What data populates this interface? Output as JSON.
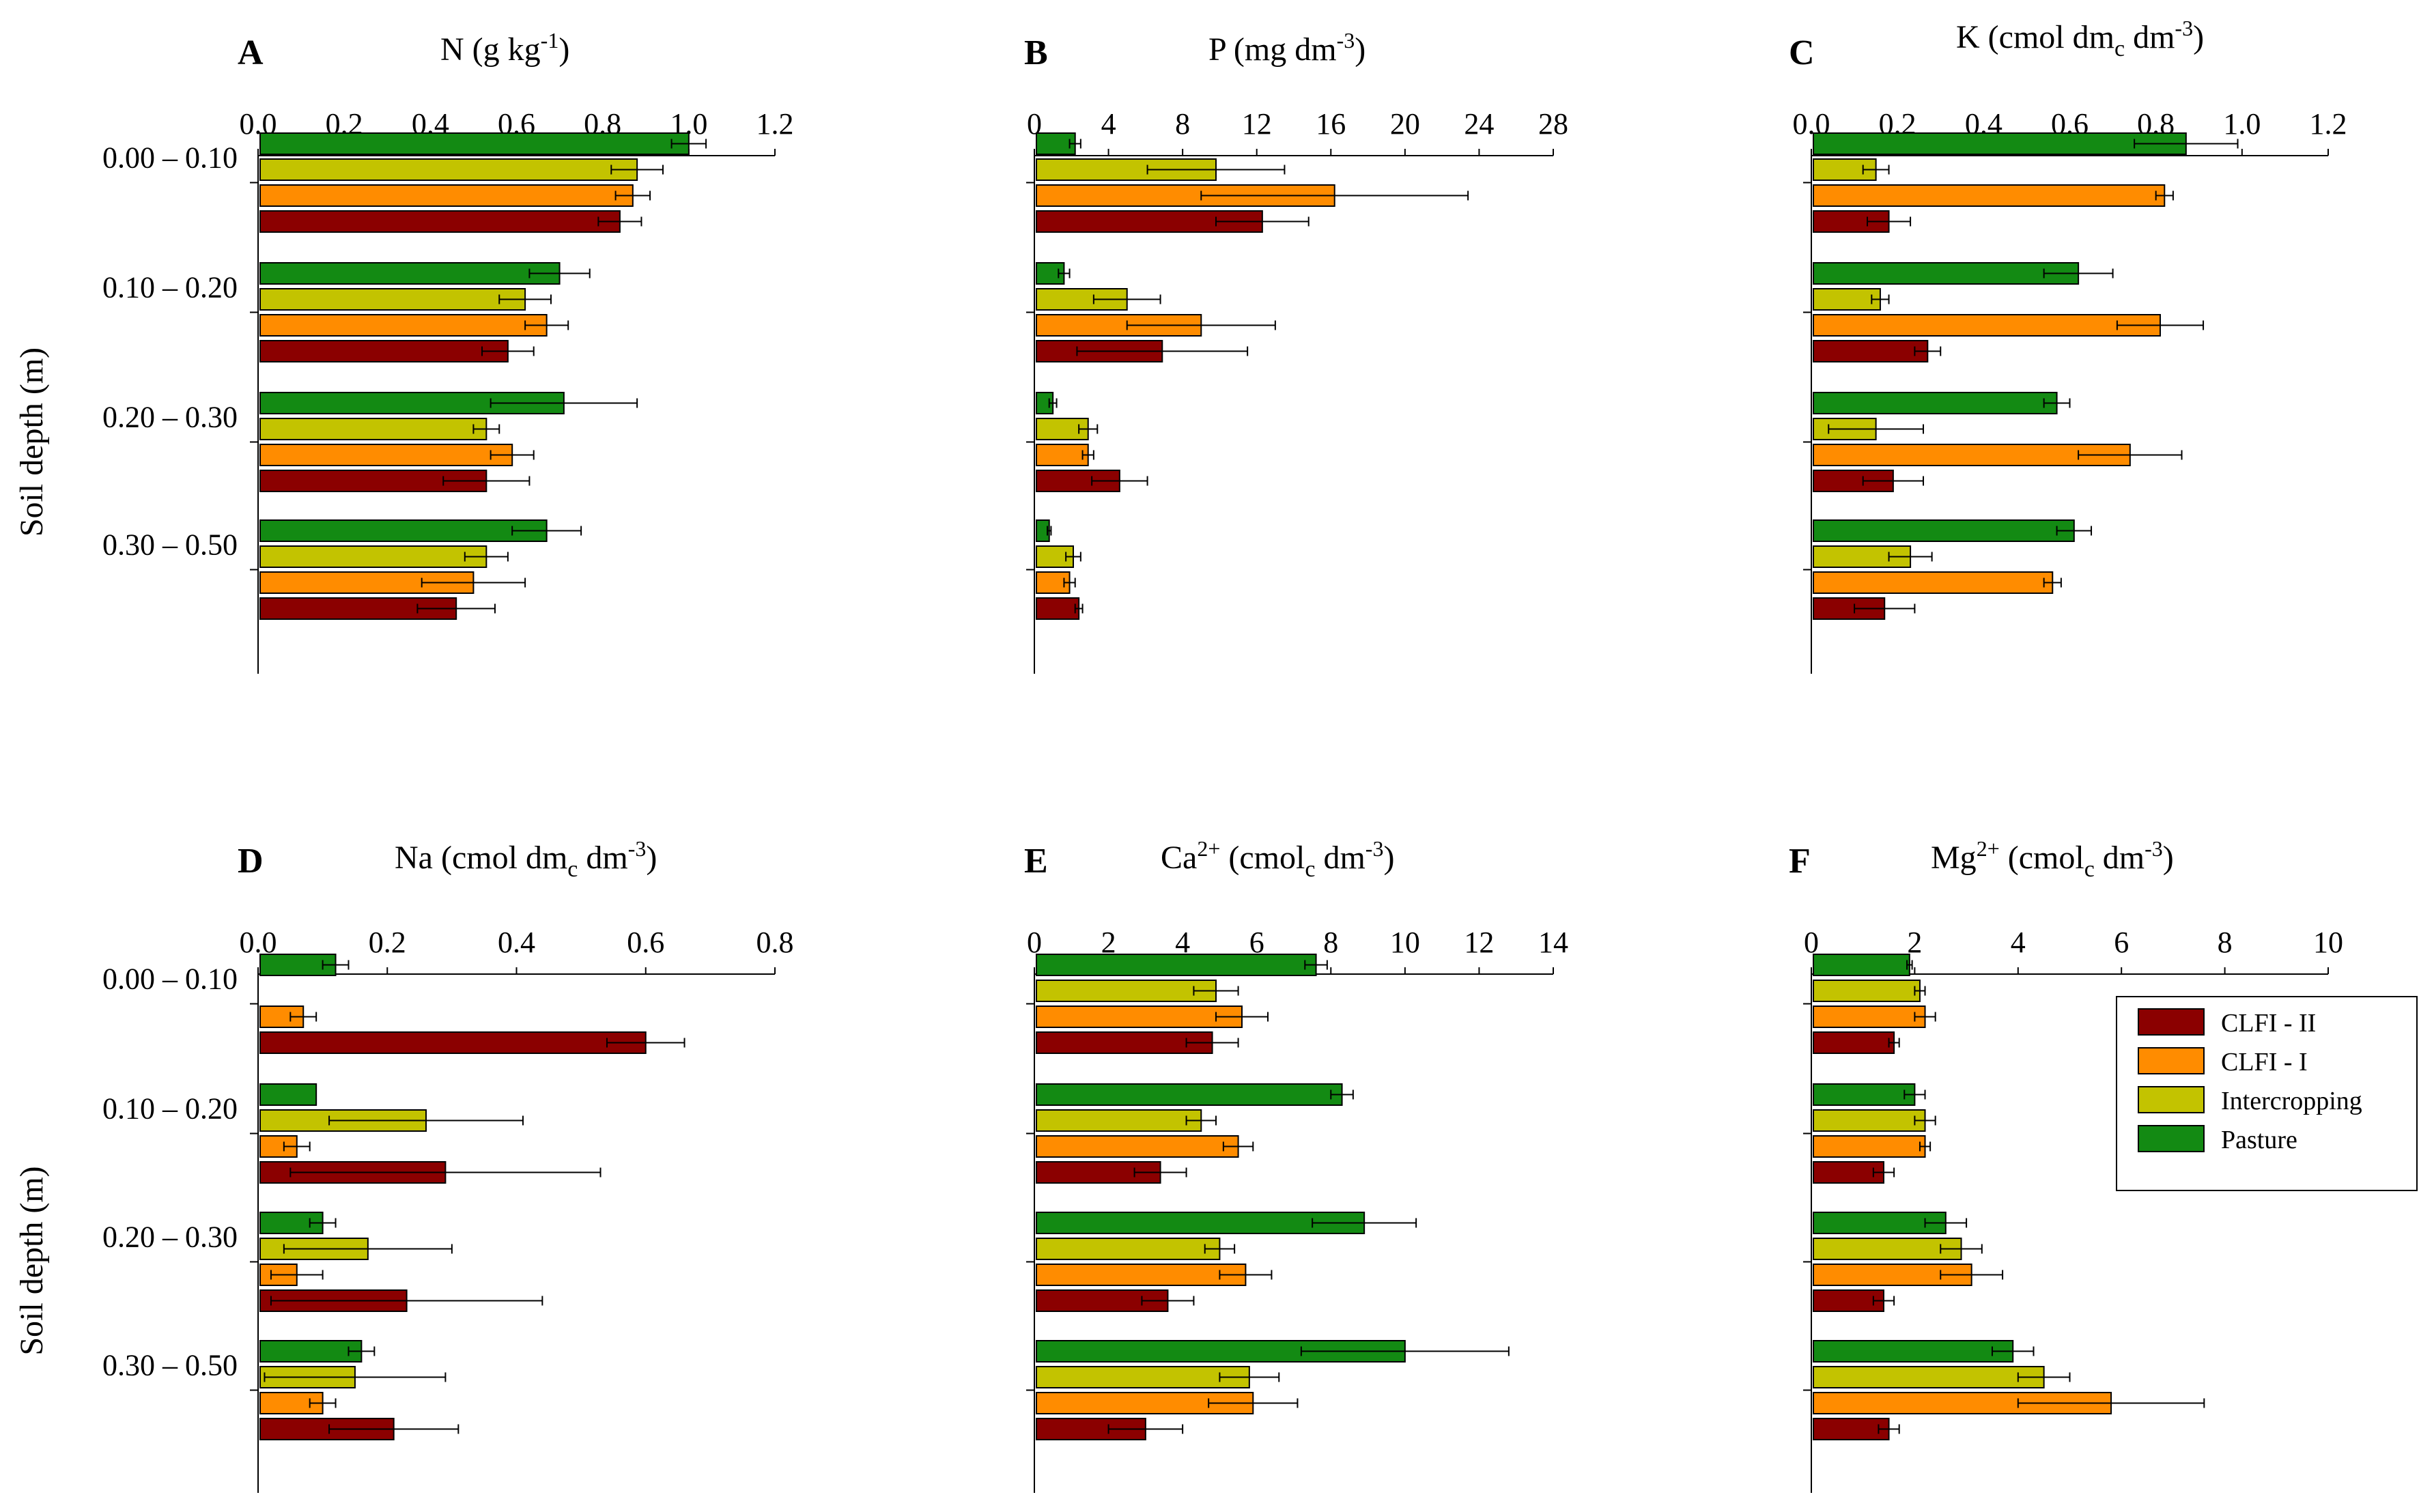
{
  "colors": {
    "CLFI - II": "#8b0000",
    "CLFI - I": "#ff8c00",
    "Intercropping": "#c3c300",
    "Pasture": "#138a13"
  },
  "legend": [
    "CLFI - II",
    "CLFI - I",
    "Intercropping",
    "Pasture"
  ],
  "chart_data": [
    {
      "type": "bar",
      "orientation": "horizontal",
      "panel": "A",
      "title": {
        "base": "N (g kg",
        "sup": "-1",
        "tail": ")"
      },
      "xlim": [
        0,
        1.2
      ],
      "xticks": [
        "0.0",
        "0.2",
        "0.4",
        "0.6",
        "0.8",
        "1.0",
        "1.2"
      ],
      "ylabel": "Soil depth (m)",
      "categories": [
        "0.00 – 0.10",
        "0.10 – 0.20",
        "0.20 – 0.30",
        "0.30 – 0.50"
      ],
      "series": [
        {
          "name": "Pasture",
          "values": [
            1.0,
            0.7,
            0.71,
            0.67
          ],
          "errors": [
            0.04,
            0.07,
            0.17,
            0.08
          ]
        },
        {
          "name": "Intercropping",
          "values": [
            0.88,
            0.62,
            0.53,
            0.53
          ],
          "errors": [
            0.06,
            0.06,
            0.03,
            0.05
          ]
        },
        {
          "name": "CLFI - I",
          "values": [
            0.87,
            0.67,
            0.59,
            0.5
          ],
          "errors": [
            0.04,
            0.05,
            0.05,
            0.12
          ]
        },
        {
          "name": "CLFI - II",
          "values": [
            0.84,
            0.58,
            0.53,
            0.46
          ],
          "errors": [
            0.05,
            0.06,
            0.1,
            0.09
          ]
        }
      ]
    },
    {
      "type": "bar",
      "orientation": "horizontal",
      "panel": "B",
      "title": {
        "base": "P (mg dm",
        "sup": "-3",
        "tail": ")"
      },
      "xlim": [
        0,
        28
      ],
      "xticks": [
        "0",
        "4",
        "8",
        "12",
        "16",
        "20",
        "24",
        "28"
      ],
      "ylabel": "",
      "categories": [
        "0.00 – 0.10",
        "0.10 – 0.20",
        "0.20 – 0.30",
        "0.30 – 0.50"
      ],
      "series": [
        {
          "name": "Pasture",
          "values": [
            2.2,
            1.6,
            1.0,
            0.8
          ],
          "errors": [
            0.3,
            0.3,
            0.2,
            0.1
          ]
        },
        {
          "name": "Intercropping",
          "values": [
            9.8,
            5.0,
            2.9,
            2.1
          ],
          "errors": [
            3.7,
            1.8,
            0.5,
            0.4
          ]
        },
        {
          "name": "CLFI - I",
          "values": [
            16.2,
            9.0,
            2.9,
            1.9
          ],
          "errors": [
            7.2,
            4.0,
            0.3,
            0.3
          ]
        },
        {
          "name": "CLFI - II",
          "values": [
            12.3,
            6.9,
            4.6,
            2.4
          ],
          "errors": [
            2.5,
            4.6,
            1.5,
            0.2
          ]
        }
      ]
    },
    {
      "type": "bar",
      "orientation": "horizontal",
      "panel": "C",
      "title": {
        "base": "K (cmol",
        "sub": "c",
        "mid": " dm",
        "sup": "-3",
        "tail": ")"
      },
      "xlim": [
        0,
        1.2
      ],
      "xticks": [
        "0.0",
        "0.2",
        "0.4",
        "0.6",
        "0.8",
        "1.0",
        "1.2"
      ],
      "ylabel": "",
      "categories": [
        "0.00 – 0.10",
        "0.10 – 0.20",
        "0.20 – 0.30",
        "0.30 – 0.50"
      ],
      "series": [
        {
          "name": "Pasture",
          "values": [
            0.87,
            0.62,
            0.57,
            0.61
          ],
          "errors": [
            0.12,
            0.08,
            0.03,
            0.04
          ]
        },
        {
          "name": "Intercropping",
          "values": [
            0.15,
            0.16,
            0.15,
            0.23
          ],
          "errors": [
            0.03,
            0.02,
            0.11,
            0.05
          ]
        },
        {
          "name": "CLFI - I",
          "values": [
            0.82,
            0.81,
            0.74,
            0.56
          ],
          "errors": [
            0.02,
            0.1,
            0.12,
            0.02
          ]
        },
        {
          "name": "CLFI - II",
          "values": [
            0.18,
            0.27,
            0.19,
            0.17
          ],
          "errors": [
            0.05,
            0.03,
            0.07,
            0.07
          ]
        }
      ]
    },
    {
      "type": "bar",
      "orientation": "horizontal",
      "panel": "D",
      "title": {
        "base": "Na (cmol",
        "sub": "c",
        "mid": " dm",
        "sup": "-3",
        "tail": ")"
      },
      "xlim": [
        0,
        0.8
      ],
      "xticks": [
        "0.0",
        "0.2",
        "0.4",
        "0.6",
        "0.8"
      ],
      "ylabel": "Soil depth (m)",
      "categories": [
        "0.00 – 0.10",
        "0.10 – 0.20",
        "0.20 – 0.30",
        "0.30 – 0.50"
      ],
      "series": [
        {
          "name": "Pasture",
          "values": [
            0.12,
            0.09,
            0.1,
            0.16
          ],
          "errors": [
            0.02,
            0.0,
            0.02,
            0.02
          ]
        },
        {
          "name": "Intercropping",
          "values": [
            0.0,
            0.26,
            0.17,
            0.15
          ],
          "errors": [
            0.0,
            0.15,
            0.13,
            0.14
          ]
        },
        {
          "name": "CLFI - I",
          "values": [
            0.07,
            0.06,
            0.06,
            0.1
          ],
          "errors": [
            0.02,
            0.02,
            0.04,
            0.02
          ]
        },
        {
          "name": "CLFI - II",
          "values": [
            0.6,
            0.29,
            0.23,
            0.21
          ],
          "errors": [
            0.06,
            0.24,
            0.21,
            0.1
          ]
        }
      ]
    },
    {
      "type": "bar",
      "orientation": "horizontal",
      "panel": "E",
      "title": {
        "base": "Ca",
        "supPre": "2+",
        "mid": " (cmol",
        "sub": "c",
        "mid2": " dm",
        "sup": "-3",
        "tail": ")"
      },
      "xlim": [
        0,
        14
      ],
      "xticks": [
        "0",
        "2",
        "4",
        "6",
        "8",
        "10",
        "12",
        "14"
      ],
      "ylabel": "",
      "categories": [
        "0.00 – 0.10",
        "0.10 – 0.20",
        "0.20 – 0.30",
        "0.30 – 0.50"
      ],
      "series": [
        {
          "name": "Pasture",
          "values": [
            7.6,
            8.3,
            8.9,
            10.0
          ],
          "errors": [
            0.3,
            0.3,
            1.4,
            2.8
          ]
        },
        {
          "name": "Intercropping",
          "values": [
            4.9,
            4.5,
            5.0,
            5.8
          ],
          "errors": [
            0.6,
            0.4,
            0.4,
            0.8
          ]
        },
        {
          "name": "CLFI - I",
          "values": [
            5.6,
            5.5,
            5.7,
            5.9
          ],
          "errors": [
            0.7,
            0.4,
            0.7,
            1.2
          ]
        },
        {
          "name": "CLFI - II",
          "values": [
            4.8,
            3.4,
            3.6,
            3.0
          ],
          "errors": [
            0.7,
            0.7,
            0.7,
            1.0
          ]
        }
      ]
    },
    {
      "type": "bar",
      "orientation": "horizontal",
      "panel": "F",
      "title": {
        "base": "Mg",
        "supPre": "2+",
        "mid": " (cmol",
        "sub": "c",
        "mid2": " dm",
        "sup": "-3",
        "tail": ")"
      },
      "xlim": [
        0,
        10
      ],
      "xticks": [
        "0",
        "2",
        "4",
        "6",
        "8",
        "10"
      ],
      "ylabel": "",
      "categories": [
        "0.00 – 0.10",
        "0.10 – 0.20",
        "0.20 – 0.30",
        "0.30 – 0.50"
      ],
      "series": [
        {
          "name": "Pasture",
          "values": [
            1.9,
            2.0,
            2.6,
            3.9
          ],
          "errors": [
            0.05,
            0.2,
            0.4,
            0.4
          ]
        },
        {
          "name": "Intercropping",
          "values": [
            2.1,
            2.2,
            2.9,
            4.5
          ],
          "errors": [
            0.1,
            0.2,
            0.4,
            0.5
          ]
        },
        {
          "name": "CLFI - I",
          "values": [
            2.2,
            2.2,
            3.1,
            5.8
          ],
          "errors": [
            0.2,
            0.1,
            0.6,
            1.8
          ]
        },
        {
          "name": "CLFI - II",
          "values": [
            1.6,
            1.4,
            1.4,
            1.5
          ],
          "errors": [
            0.1,
            0.2,
            0.2,
            0.2
          ]
        }
      ]
    }
  ]
}
